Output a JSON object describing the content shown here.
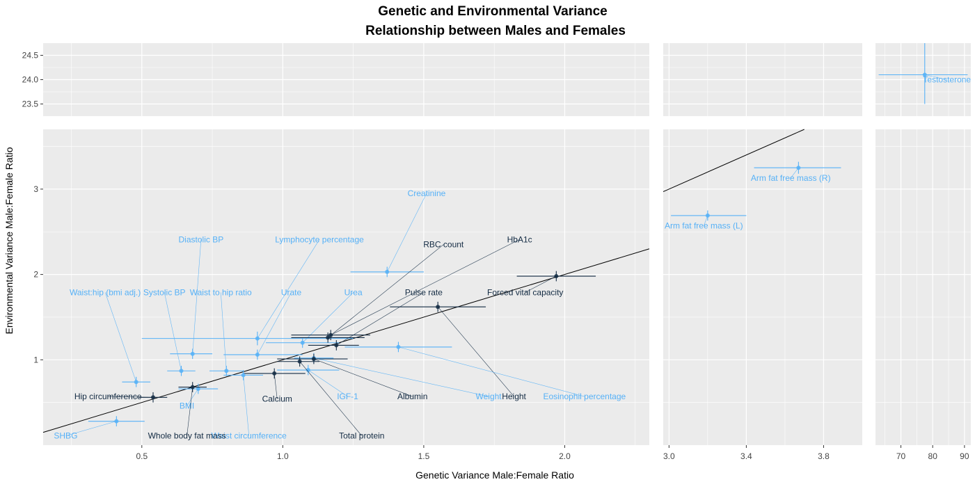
{
  "chart_data": {
    "type": "scatter",
    "title": "Genetic and Environmental Variance",
    "subtitle": "Relationship between Males and Females",
    "xlabel": "Genetic Variance Male:Female Ratio",
    "ylabel": "Environmental Variance Male:Female Ratio",
    "colors": {
      "dark": "#132B43",
      "light": "#56B1F7",
      "panel": "#EBEBEB",
      "grid": "#FFFFFF"
    },
    "grid": true,
    "x_panels": [
      {
        "xlim": [
          0.15,
          2.3
        ],
        "ticks": [
          0.5,
          1.0,
          1.5,
          2.0
        ],
        "tick_labels": [
          "0.5",
          "1.0",
          "1.5",
          "2.0"
        ]
      },
      {
        "xlim": [
          2.97,
          4.0
        ],
        "ticks": [
          3.0,
          3.4,
          3.8
        ],
        "tick_labels": [
          "3.0",
          "3.4",
          "3.8"
        ]
      },
      {
        "xlim": [
          62,
          92
        ],
        "ticks": [
          70,
          80,
          90
        ],
        "tick_labels": [
          "70",
          "80",
          "90"
        ]
      }
    ],
    "y_panels": [
      {
        "ylim": [
          23.25,
          24.75
        ],
        "ticks": [
          23.5,
          24.0,
          24.5
        ],
        "tick_labels": [
          "23.5",
          "24.0",
          "24.5"
        ]
      },
      {
        "ylim": [
          0.0,
          3.7
        ],
        "ticks": [
          1,
          2,
          3
        ],
        "tick_labels": [
          "1",
          "2",
          "3"
        ]
      }
    ],
    "reference_line": {
      "slope": 1,
      "intercept": 0
    },
    "points": [
      {
        "label": "Waist:hip (bmi adj.)",
        "x": 0.48,
        "y": 0.74,
        "xlo": 0.43,
        "xhi": 0.53,
        "group": "light",
        "lx": 0.37,
        "ly": 1.79
      },
      {
        "label": "Systolic BP",
        "x": 0.64,
        "y": 0.87,
        "xlo": 0.59,
        "xhi": 0.69,
        "group": "light",
        "lx": 0.58,
        "ly": 1.79
      },
      {
        "label": "Diastolic BP",
        "x": 0.68,
        "y": 1.07,
        "xlo": 0.6,
        "xhi": 0.75,
        "group": "light",
        "lx": 0.71,
        "ly": 2.41
      },
      {
        "label": "Waist to hip ratio",
        "x": 0.8,
        "y": 0.87,
        "xlo": 0.74,
        "xhi": 0.86,
        "group": "light",
        "lx": 0.78,
        "ly": 1.79
      },
      {
        "label": "Lymphocyte percentage",
        "x": 0.91,
        "y": 1.25,
        "ylo": 1.17,
        "yhi": 1.33,
        "xlo": 0.5,
        "xhi": 1.25,
        "group": "light",
        "lx": 1.13,
        "ly": 2.41
      },
      {
        "label": "Urate",
        "x": 0.91,
        "y": 1.06,
        "xlo": 0.79,
        "xhi": 1.07,
        "group": "light",
        "lx": 1.03,
        "ly": 1.79
      },
      {
        "label": "Urea",
        "x": 1.07,
        "y": 1.2,
        "xlo": 0.94,
        "xhi": 1.2,
        "group": "light",
        "lx": 1.25,
        "ly": 1.79
      },
      {
        "label": "Creatinine",
        "x": 1.37,
        "y": 2.03,
        "xlo": 1.24,
        "xhi": 1.5,
        "group": "light",
        "lx": 1.51,
        "ly": 2.95
      },
      {
        "label": "RBC count",
        "x": 1.16,
        "y": 1.26,
        "xlo": 1.03,
        "xhi": 1.29,
        "group": "dark",
        "lx": 1.57,
        "ly": 2.35
      },
      {
        "label": "HbA1c",
        "x": 1.17,
        "y": 1.29,
        "xlo": 1.03,
        "xhi": 1.31,
        "group": "dark",
        "lx": 1.84,
        "ly": 2.41
      },
      {
        "label": "Pulse rate",
        "x": 1.19,
        "y": 1.17,
        "xlo": 1.09,
        "xhi": 1.27,
        "group": "dark",
        "lx": 1.5,
        "ly": 1.79
      },
      {
        "label": "Forced vital capacity",
        "x": 1.97,
        "y": 1.98,
        "xlo": 1.83,
        "xhi": 2.11,
        "group": "dark",
        "lx": 1.86,
        "ly": 1.79
      },
      {
        "label": "Height",
        "x": 1.55,
        "y": 1.62,
        "xlo": 1.38,
        "xhi": 1.72,
        "group": "dark",
        "lx": 1.82,
        "ly": 0.57
      },
      {
        "label": "Eosinophil percentage",
        "x": 1.41,
        "y": 1.15,
        "xlo": 1.22,
        "xhi": 1.6,
        "group": "light",
        "lx": 2.07,
        "ly": 0.57
      },
      {
        "label": "Weight",
        "x": 1.11,
        "y": 1.02,
        "xlo": 1.04,
        "xhi": 1.18,
        "group": "light",
        "lx": 1.73,
        "ly": 0.57
      },
      {
        "label": "Albumin",
        "x": 1.11,
        "y": 1.01,
        "xlo": 0.98,
        "xhi": 1.23,
        "group": "dark",
        "lx": 1.46,
        "ly": 0.57
      },
      {
        "label": "IGF-1",
        "x": 1.09,
        "y": 0.88,
        "xlo": 0.98,
        "xhi": 1.2,
        "group": "light",
        "lx": 1.23,
        "ly": 0.57
      },
      {
        "label": "Total protein",
        "x": 1.06,
        "y": 0.98,
        "xlo": 0.98,
        "xhi": 1.13,
        "group": "dark",
        "lx": 1.28,
        "ly": 0.11
      },
      {
        "label": "Calcium",
        "x": 0.97,
        "y": 0.84,
        "xlo": 0.86,
        "xhi": 1.08,
        "group": "dark",
        "lx": 0.98,
        "ly": 0.54
      },
      {
        "label": "Waist circumference",
        "x": 0.86,
        "y": 0.82,
        "xlo": 0.79,
        "xhi": 0.93,
        "group": "light",
        "lx": 0.88,
        "ly": 0.11
      },
      {
        "label": "Hip circumference",
        "x": 0.54,
        "y": 0.56,
        "xlo": 0.49,
        "xhi": 0.59,
        "group": "dark",
        "lx": 0.38,
        "ly": 0.57
      },
      {
        "label": "BMI",
        "x": 0.7,
        "y": 0.66,
        "xlo": 0.63,
        "xhi": 0.77,
        "group": "light",
        "lx": 0.66,
        "ly": 0.46
      },
      {
        "label": "Whole body fat mass",
        "x": 0.68,
        "y": 0.68,
        "xlo": 0.63,
        "xhi": 0.73,
        "group": "dark",
        "lx": 0.66,
        "ly": 0.11
      },
      {
        "label": "SHBG",
        "x": 0.41,
        "y": 0.28,
        "xlo": 0.31,
        "xhi": 0.51,
        "group": "light",
        "lx": 0.23,
        "ly": 0.11
      },
      {
        "label": "Arm fat free mass (L)",
        "x": 3.2,
        "y": 2.69,
        "xlo": 3.01,
        "xhi": 3.4,
        "ylo": 2.63,
        "yhi": 2.75,
        "group": "light",
        "lx": 3.18,
        "ly": 2.57,
        "xpanel": 1
      },
      {
        "label": "Arm fat free mass (R)",
        "x": 3.67,
        "y": 3.25,
        "xlo": 3.44,
        "xhi": 3.89,
        "ylo": 3.18,
        "yhi": 3.32,
        "group": "light",
        "lx": 3.63,
        "ly": 3.13,
        "xpanel": 1
      },
      {
        "label": "Testosterone",
        "x": 77.5,
        "y": 24.1,
        "xlo": 63,
        "xhi": 91,
        "ylo": 23.5,
        "yhi": 24.75,
        "group": "light",
        "lx": 84.5,
        "ly": 24.0,
        "xpanel": 2,
        "ypanel": 0
      }
    ]
  }
}
